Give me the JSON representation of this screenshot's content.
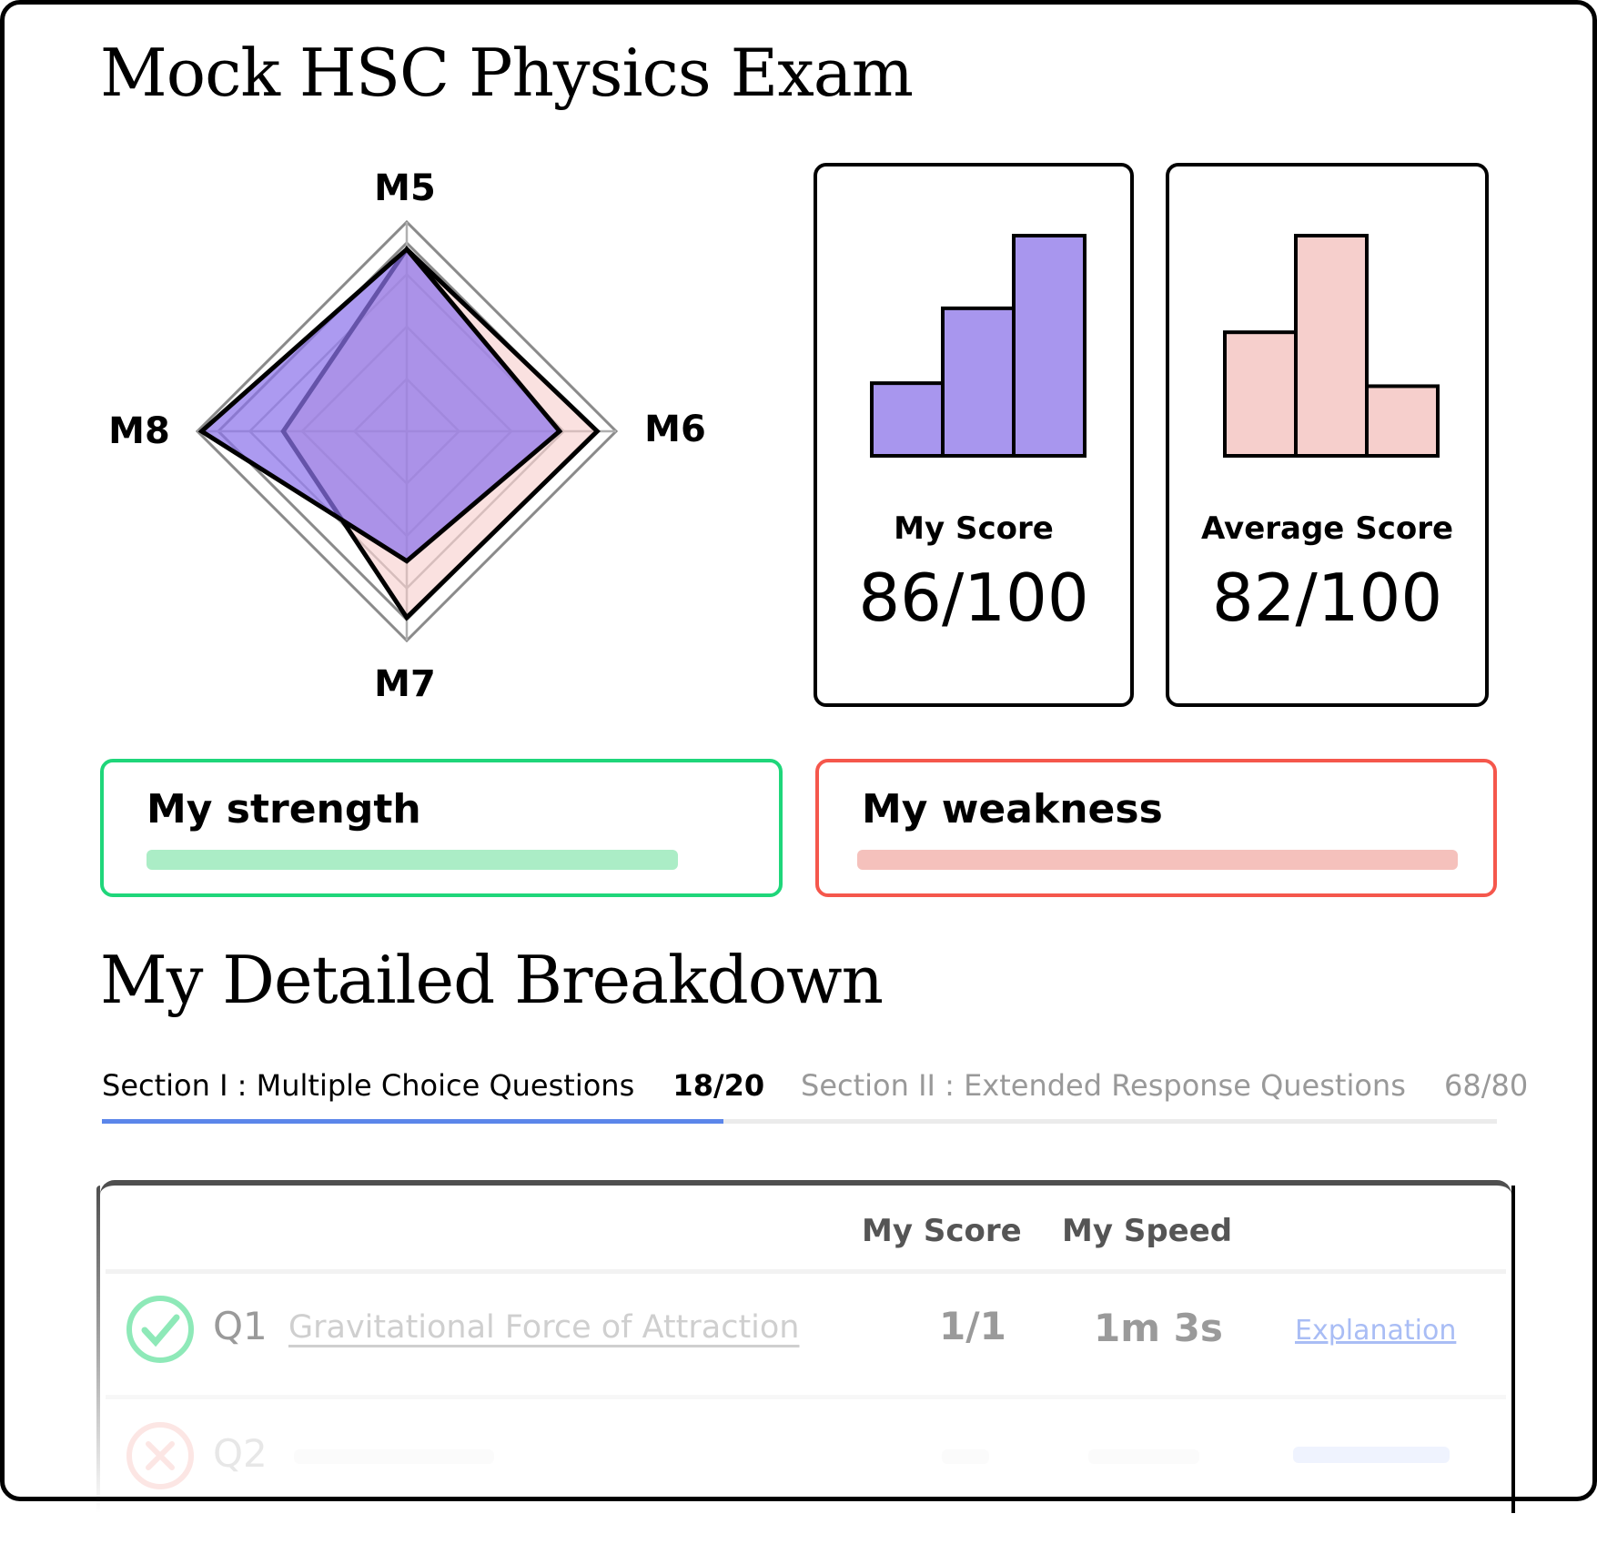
{
  "title": "Mock HSC Physics Exam",
  "chart_data": [
    {
      "type": "radar",
      "axes": [
        "M5",
        "M6",
        "M7",
        "M8"
      ],
      "range": [
        0,
        1
      ],
      "grid": true,
      "series": [
        {
          "values": [
            0.87,
            0.91,
            0.89,
            0.59
          ],
          "color": "#f5c9c6"
        },
        {
          "values": [
            0.87,
            0.73,
            0.62,
            0.98
          ],
          "color": "#8c73ea"
        }
      ]
    },
    {
      "type": "bar",
      "values": [
        33,
        67,
        100
      ],
      "color": "#a896ee"
    },
    {
      "type": "bar",
      "values": [
        55,
        98,
        31
      ],
      "color": "#f6cfcc"
    }
  ],
  "score_cards": [
    {
      "label": "My Score",
      "value": "86/100"
    },
    {
      "label": "Average Score",
      "value": "82/100"
    }
  ],
  "strength": {
    "title": "My strength",
    "color": "#1fd67a",
    "bar_color": "#abedc6"
  },
  "weakness": {
    "title": "My weakness",
    "color": "#f5574c",
    "bar_color": "#f5c1bc"
  },
  "breakdown_title": "My Detailed Breakdown",
  "tabs": [
    {
      "label": "Section I : Multiple Choice Questions",
      "score": "18/20",
      "active": true
    },
    {
      "label": "Section II : Extended Response Questions",
      "score": "68/80",
      "active": false
    }
  ],
  "table": {
    "headers": {
      "score": "My Score",
      "speed": "My Speed"
    },
    "rows": [
      {
        "status": "correct",
        "q": "Q1",
        "topic": "Gravitational Force of Attraction",
        "score": "1/1",
        "speed": "1m 3s",
        "link": "Explanation"
      },
      {
        "status": "incorrect",
        "q": "Q2"
      }
    ]
  },
  "colors": {
    "accent": "#5b86ea",
    "correct": "#8ee9b8",
    "incorrect": "#fbd5d2",
    "link": "#a9bdf5"
  }
}
